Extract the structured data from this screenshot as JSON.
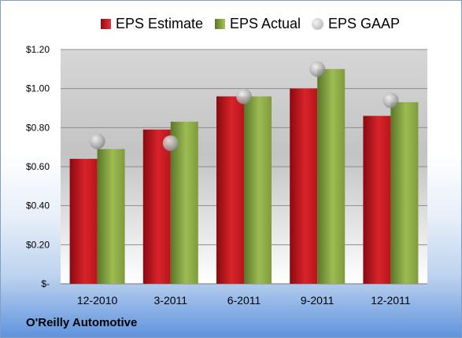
{
  "chart_data": {
    "type": "bar",
    "categories": [
      "12-2010",
      "3-2011",
      "6-2011",
      "9-2011",
      "12-2011"
    ],
    "series": [
      {
        "name": "EPS Estimate",
        "values": [
          0.64,
          0.79,
          0.96,
          1.0,
          0.86
        ],
        "color": "#c41e24"
      },
      {
        "name": "EPS Actual",
        "values": [
          0.69,
          0.83,
          0.96,
          1.1,
          0.93
        ],
        "color": "#8aaa42"
      },
      {
        "name": "EPS GAAP",
        "values": [
          0.73,
          0.72,
          0.96,
          1.1,
          0.94
        ],
        "color": "#b0b0b0",
        "marker": "circle"
      }
    ],
    "yticks": [
      "$-",
      "$0.20",
      "$0.40",
      "$0.60",
      "$0.80",
      "$1.00",
      "$1.20"
    ],
    "ylim": [
      0,
      1.2
    ],
    "grid": true,
    "legend_position": "top"
  },
  "legend": {
    "estimate": "EPS Estimate",
    "actual": "EPS Actual",
    "gaap": "EPS GAAP"
  },
  "company": "O'Reilly Automotive"
}
